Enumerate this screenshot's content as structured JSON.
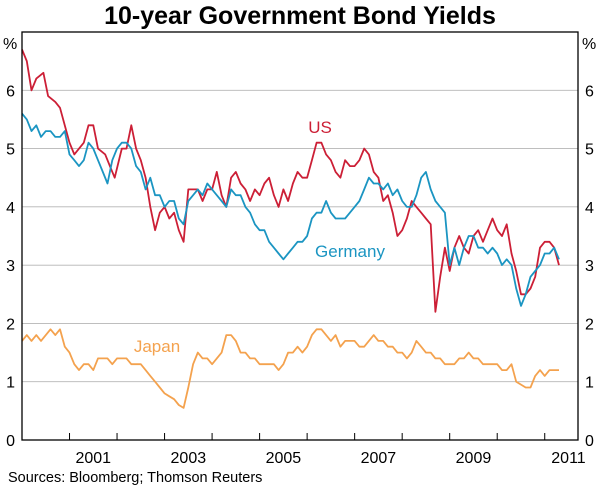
{
  "chart_data": {
    "type": "line",
    "title": "10-year Government Bond Yields",
    "ylabel_left": "%",
    "ylabel_right": "%",
    "xlim": [
      2000.0,
      2011.7
    ],
    "ylim": [
      0,
      7
    ],
    "yticks": [
      0,
      1,
      2,
      3,
      4,
      5,
      6
    ],
    "xtick_labels": [
      "2001",
      "2003",
      "2005",
      "2007",
      "2009",
      "2011"
    ],
    "xtick_positions": [
      2001.5,
      2003.5,
      2005.5,
      2007.5,
      2009.5,
      2011.5
    ],
    "year_boundaries": [
      2001,
      2002,
      2003,
      2004,
      2005,
      2006,
      2007,
      2008,
      2009,
      2010,
      2011
    ],
    "grid": true,
    "series": [
      {
        "name": "US",
        "label": "US",
        "color": "#cc1f36",
        "x": [
          2000.0,
          2000.1,
          2000.2,
          2000.3,
          2000.45,
          2000.55,
          2000.7,
          2000.8,
          2001.0,
          2001.1,
          2001.3,
          2001.4,
          2001.5,
          2001.6,
          2001.75,
          2001.85,
          2001.95,
          2002.1,
          2002.2,
          2002.3,
          2002.4,
          2002.5,
          2002.6,
          2002.7,
          2002.8,
          2002.9,
          2003.0,
          2003.1,
          2003.2,
          2003.3,
          2003.4,
          2003.5,
          2003.6,
          2003.7,
          2003.8,
          2003.9,
          2004.0,
          2004.1,
          2004.2,
          2004.3,
          2004.4,
          2004.5,
          2004.6,
          2004.7,
          2004.8,
          2004.9,
          2005.0,
          2005.1,
          2005.2,
          2005.3,
          2005.4,
          2005.5,
          2005.6,
          2005.7,
          2005.8,
          2005.9,
          2006.0,
          2006.1,
          2006.2,
          2006.3,
          2006.4,
          2006.5,
          2006.6,
          2006.7,
          2006.8,
          2006.9,
          2007.0,
          2007.1,
          2007.2,
          2007.3,
          2007.4,
          2007.5,
          2007.6,
          2007.7,
          2007.8,
          2007.9,
          2008.0,
          2008.1,
          2008.2,
          2008.3,
          2008.4,
          2008.5,
          2008.6,
          2008.7,
          2008.8,
          2008.9,
          2009.0,
          2009.1,
          2009.2,
          2009.3,
          2009.4,
          2009.5,
          2009.6,
          2009.7,
          2009.8,
          2009.9,
          2010.0,
          2010.1,
          2010.2,
          2010.3,
          2010.4,
          2010.5,
          2010.6,
          2010.7,
          2010.8,
          2010.9,
          2011.0,
          2011.1,
          2011.2,
          2011.3
        ],
        "values": [
          6.7,
          6.5,
          6.0,
          6.2,
          6.3,
          5.9,
          5.8,
          5.7,
          5.1,
          4.9,
          5.1,
          5.4,
          5.4,
          5.0,
          4.9,
          4.7,
          4.5,
          5.0,
          5.0,
          5.4,
          5.0,
          4.8,
          4.5,
          4.0,
          3.6,
          3.9,
          4.0,
          3.8,
          3.9,
          3.6,
          3.4,
          4.3,
          4.3,
          4.3,
          4.1,
          4.3,
          4.3,
          4.6,
          4.2,
          4.0,
          4.5,
          4.6,
          4.4,
          4.3,
          4.1,
          4.3,
          4.2,
          4.4,
          4.5,
          4.2,
          4.0,
          4.3,
          4.1,
          4.4,
          4.6,
          4.5,
          4.5,
          4.8,
          5.1,
          5.1,
          4.9,
          4.8,
          4.6,
          4.5,
          4.8,
          4.7,
          4.7,
          4.8,
          5.0,
          4.9,
          4.6,
          4.5,
          4.1,
          4.2,
          3.9,
          3.5,
          3.6,
          3.8,
          4.1,
          4.0,
          3.9,
          3.8,
          3.7,
          2.2,
          2.8,
          3.3,
          2.9,
          3.3,
          3.5,
          3.3,
          3.2,
          3.5,
          3.6,
          3.4,
          3.6,
          3.8,
          3.6,
          3.5,
          3.7,
          3.2,
          2.9,
          2.5,
          2.5,
          2.6,
          2.8,
          3.3,
          3.4,
          3.4,
          3.3,
          3.0
        ]
      },
      {
        "name": "Germany",
        "label": "Germany",
        "color": "#1b95c2",
        "x": [
          2000.0,
          2000.1,
          2000.2,
          2000.3,
          2000.4,
          2000.5,
          2000.6,
          2000.7,
          2000.8,
          2000.9,
          2001.0,
          2001.1,
          2001.2,
          2001.3,
          2001.4,
          2001.5,
          2001.6,
          2001.7,
          2001.8,
          2001.9,
          2002.0,
          2002.1,
          2002.2,
          2002.3,
          2002.4,
          2002.5,
          2002.6,
          2002.7,
          2002.8,
          2002.9,
          2003.0,
          2003.1,
          2003.2,
          2003.3,
          2003.4,
          2003.5,
          2003.6,
          2003.7,
          2003.8,
          2003.9,
          2004.0,
          2004.1,
          2004.2,
          2004.3,
          2004.4,
          2004.5,
          2004.6,
          2004.7,
          2004.8,
          2004.9,
          2005.0,
          2005.1,
          2005.2,
          2005.3,
          2005.4,
          2005.5,
          2005.6,
          2005.7,
          2005.8,
          2005.9,
          2006.0,
          2006.1,
          2006.2,
          2006.3,
          2006.4,
          2006.5,
          2006.6,
          2006.7,
          2006.8,
          2006.9,
          2007.0,
          2007.1,
          2007.2,
          2007.3,
          2007.4,
          2007.5,
          2007.6,
          2007.7,
          2007.8,
          2007.9,
          2008.0,
          2008.1,
          2008.2,
          2008.3,
          2008.4,
          2008.5,
          2008.6,
          2008.7,
          2008.8,
          2008.9,
          2009.0,
          2009.1,
          2009.2,
          2009.3,
          2009.4,
          2009.5,
          2009.6,
          2009.7,
          2009.8,
          2009.9,
          2010.0,
          2010.1,
          2010.2,
          2010.3,
          2010.4,
          2010.5,
          2010.6,
          2010.7,
          2010.8,
          2010.9,
          2011.0,
          2011.1,
          2011.2,
          2011.3
        ],
        "values": [
          5.6,
          5.5,
          5.3,
          5.4,
          5.2,
          5.3,
          5.3,
          5.2,
          5.2,
          5.3,
          4.9,
          4.8,
          4.7,
          4.8,
          5.1,
          5.0,
          4.8,
          4.6,
          4.4,
          4.8,
          5.0,
          5.1,
          5.1,
          5.0,
          4.7,
          4.6,
          4.3,
          4.5,
          4.2,
          4.2,
          4.0,
          4.1,
          4.1,
          3.8,
          3.7,
          4.1,
          4.2,
          4.3,
          4.2,
          4.4,
          4.3,
          4.2,
          4.1,
          4.0,
          4.3,
          4.2,
          4.2,
          4.0,
          3.9,
          3.7,
          3.6,
          3.6,
          3.4,
          3.3,
          3.2,
          3.1,
          3.2,
          3.3,
          3.4,
          3.4,
          3.5,
          3.8,
          3.9,
          3.9,
          4.1,
          3.9,
          3.8,
          3.8,
          3.8,
          3.9,
          4.0,
          4.1,
          4.3,
          4.5,
          4.4,
          4.4,
          4.3,
          4.4,
          4.2,
          4.3,
          4.1,
          4.0,
          4.0,
          4.2,
          4.5,
          4.6,
          4.3,
          4.1,
          4.0,
          3.9,
          3.0,
          3.3,
          3.0,
          3.3,
          3.5,
          3.5,
          3.3,
          3.3,
          3.2,
          3.3,
          3.2,
          3.0,
          3.1,
          3.0,
          2.6,
          2.3,
          2.5,
          2.8,
          2.9,
          3.0,
          3.2,
          3.2,
          3.3,
          3.1
        ]
      },
      {
        "name": "Japan",
        "label": "Japan",
        "color": "#f4a24e",
        "x": [
          2000.0,
          2000.1,
          2000.2,
          2000.3,
          2000.4,
          2000.5,
          2000.6,
          2000.7,
          2000.8,
          2000.9,
          2001.0,
          2001.1,
          2001.2,
          2001.3,
          2001.4,
          2001.5,
          2001.6,
          2001.7,
          2001.8,
          2001.9,
          2002.0,
          2002.1,
          2002.2,
          2002.3,
          2002.4,
          2002.5,
          2002.6,
          2002.7,
          2002.8,
          2002.9,
          2003.0,
          2003.1,
          2003.2,
          2003.3,
          2003.4,
          2003.5,
          2003.6,
          2003.7,
          2003.8,
          2003.9,
          2004.0,
          2004.1,
          2004.2,
          2004.3,
          2004.4,
          2004.5,
          2004.6,
          2004.7,
          2004.8,
          2004.9,
          2005.0,
          2005.1,
          2005.2,
          2005.3,
          2005.4,
          2005.5,
          2005.6,
          2005.7,
          2005.8,
          2005.9,
          2006.0,
          2006.1,
          2006.2,
          2006.3,
          2006.4,
          2006.5,
          2006.6,
          2006.7,
          2006.8,
          2006.9,
          2007.0,
          2007.1,
          2007.2,
          2007.3,
          2007.4,
          2007.5,
          2007.6,
          2007.7,
          2007.8,
          2007.9,
          2008.0,
          2008.1,
          2008.2,
          2008.3,
          2008.4,
          2008.5,
          2008.6,
          2008.7,
          2008.8,
          2008.9,
          2009.0,
          2009.1,
          2009.2,
          2009.3,
          2009.4,
          2009.5,
          2009.6,
          2009.7,
          2009.8,
          2009.9,
          2010.0,
          2010.1,
          2010.2,
          2010.3,
          2010.4,
          2010.5,
          2010.6,
          2010.7,
          2010.8,
          2010.9,
          2011.0,
          2011.1,
          2011.2,
          2011.3
        ],
        "values": [
          1.7,
          1.8,
          1.7,
          1.8,
          1.7,
          1.8,
          1.9,
          1.8,
          1.9,
          1.6,
          1.5,
          1.3,
          1.2,
          1.3,
          1.3,
          1.2,
          1.4,
          1.4,
          1.4,
          1.3,
          1.4,
          1.4,
          1.4,
          1.3,
          1.3,
          1.3,
          1.2,
          1.1,
          1.0,
          0.9,
          0.8,
          0.75,
          0.7,
          0.6,
          0.55,
          0.9,
          1.3,
          1.5,
          1.4,
          1.4,
          1.3,
          1.4,
          1.5,
          1.8,
          1.8,
          1.7,
          1.5,
          1.5,
          1.4,
          1.4,
          1.3,
          1.3,
          1.3,
          1.3,
          1.2,
          1.3,
          1.5,
          1.5,
          1.6,
          1.5,
          1.6,
          1.8,
          1.9,
          1.9,
          1.8,
          1.7,
          1.8,
          1.6,
          1.7,
          1.7,
          1.7,
          1.6,
          1.6,
          1.7,
          1.8,
          1.7,
          1.7,
          1.6,
          1.6,
          1.5,
          1.5,
          1.4,
          1.5,
          1.7,
          1.6,
          1.5,
          1.5,
          1.4,
          1.4,
          1.3,
          1.3,
          1.3,
          1.4,
          1.4,
          1.5,
          1.4,
          1.4,
          1.3,
          1.3,
          1.3,
          1.3,
          1.2,
          1.2,
          1.3,
          1.0,
          0.95,
          0.9,
          0.9,
          1.1,
          1.2,
          1.1,
          1.2,
          1.2,
          1.2
        ]
      }
    ],
    "source": "Sources: Bloomberg; Thomson Reuters"
  }
}
